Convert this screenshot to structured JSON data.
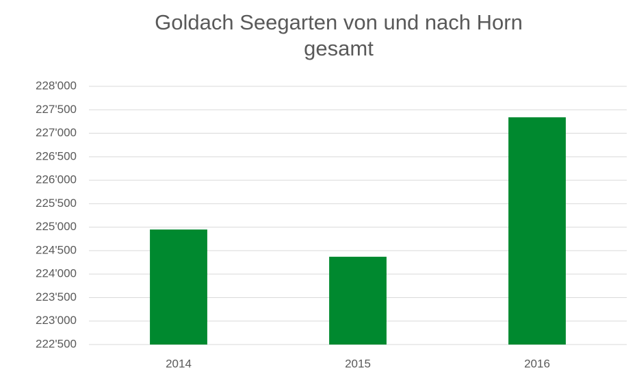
{
  "chart_data": {
    "type": "bar",
    "title": "Goldach Seegarten von und nach Horn gesamt",
    "categories": [
      "2014",
      "2015",
      "2016"
    ],
    "values": [
      224950,
      224370,
      227340
    ],
    "color": "#00892f",
    "ylim": [
      222500,
      228000
    ],
    "yticks": [
      {
        "value": 222500,
        "label": "222'500"
      },
      {
        "value": 223000,
        "label": "223'000"
      },
      {
        "value": 223500,
        "label": "223'500"
      },
      {
        "value": 224000,
        "label": "224'000"
      },
      {
        "value": 224500,
        "label": "224'500"
      },
      {
        "value": 225000,
        "label": "225'000"
      },
      {
        "value": 225500,
        "label": "225'500"
      },
      {
        "value": 226000,
        "label": "226'000"
      },
      {
        "value": 226500,
        "label": "226'500"
      },
      {
        "value": 227000,
        "label": "227'000"
      },
      {
        "value": 227500,
        "label": "227'500"
      },
      {
        "value": 228000,
        "label": "228'000"
      }
    ],
    "grid": true
  }
}
